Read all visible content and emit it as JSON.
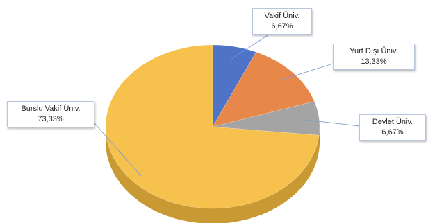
{
  "chart_data": {
    "type": "pie",
    "three_d": true,
    "slices": [
      {
        "label": "Vakif Üniv.",
        "pct_text": "6,67%",
        "value": 6.67,
        "color": "#4F73C6",
        "side": "#3A5898"
      },
      {
        "label": "Yurt Dışı Üniv.",
        "pct_text": "13,33%",
        "value": 13.33,
        "color": "#E8874A",
        "side": "#B86632"
      },
      {
        "label": "Devlet Üniv.",
        "pct_text": "6,67%",
        "value": 6.67,
        "color": "#A4A4A4",
        "side": "#7E7E7E"
      },
      {
        "label": "Burslu Vakif Üniv.",
        "pct_text": "73,33%",
        "value": 73.33,
        "color": "#F6C14C",
        "side": "#C99A33"
      }
    ],
    "legend": "none",
    "data_labels": "callouts"
  }
}
